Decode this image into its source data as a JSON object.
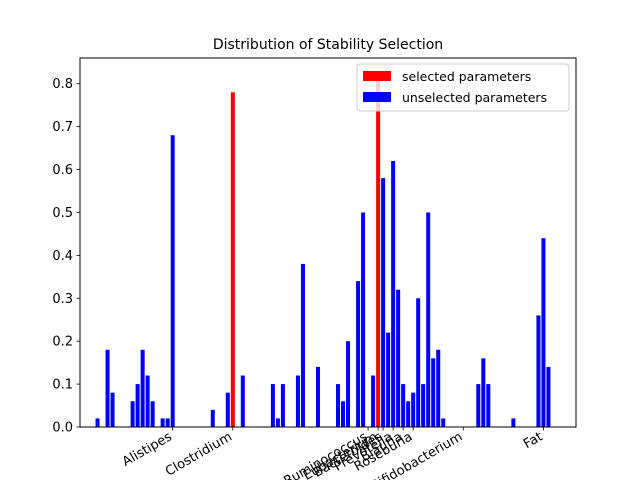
{
  "chart_data": {
    "type": "bar",
    "title": "Distribution of Stability Selection",
    "xlabel": "",
    "ylabel": "",
    "xlim": [
      -3.5,
      95.5
    ],
    "ylim": [
      0,
      0.86
    ],
    "yticks": [
      0.0,
      0.1,
      0.2,
      0.3,
      0.4,
      0.5,
      0.6,
      0.7,
      0.8
    ],
    "ytick_labels": [
      "0.0",
      "0.1",
      "0.2",
      "0.3",
      "0.4",
      "0.5",
      "0.6",
      "0.7",
      "0.8"
    ],
    "legend_position": "top-right",
    "colors": {
      "selected": "#ff0000",
      "unselected": "#0000ff"
    },
    "series": [
      {
        "name": "selected parameters",
        "x": [
          27,
          56
        ],
        "values": [
          0.78,
          0.82
        ]
      },
      {
        "name": "unselected parameters",
        "x": [
          0,
          2,
          3,
          7,
          8,
          9,
          10,
          11,
          13,
          14,
          15,
          23,
          26,
          29,
          35,
          36,
          37,
          40,
          41,
          44,
          48,
          49,
          50,
          52,
          53,
          55,
          57,
          58,
          59,
          60,
          61,
          62,
          63,
          64,
          65,
          66,
          67,
          68,
          69,
          76,
          77,
          78,
          83,
          88,
          89,
          90
        ],
        "values": [
          0.02,
          0.18,
          0.08,
          0.06,
          0.1,
          0.18,
          0.12,
          0.06,
          0.02,
          0.02,
          0.68,
          0.04,
          0.08,
          0.12,
          0.1,
          0.02,
          0.1,
          0.12,
          0.38,
          0.14,
          0.1,
          0.06,
          0.2,
          0.34,
          0.5,
          0.12,
          0.58,
          0.22,
          0.62,
          0.32,
          0.1,
          0.06,
          0.08,
          0.3,
          0.1,
          0.5,
          0.16,
          0.18,
          0.02,
          0.1,
          0.16,
          0.1,
          0.02,
          0.26,
          0.44,
          0.14
        ]
      }
    ],
    "xticks": [
      {
        "x": 15,
        "label": "Alistipes"
      },
      {
        "x": 27,
        "label": "Clostridium"
      },
      {
        "x": 54,
        "label": "Ruminococcus"
      },
      {
        "x": 56,
        "label": "Eubacterium"
      },
      {
        "x": 57,
        "label": "Bacteroides"
      },
      {
        "x": 59,
        "label": "Prevotella"
      },
      {
        "x": 61,
        "label": "Blautia"
      },
      {
        "x": 63,
        "label": "Roseburia"
      },
      {
        "x": 73,
        "label": "Bifidobacterium"
      },
      {
        "x": 89,
        "label": "Fat"
      }
    ]
  }
}
